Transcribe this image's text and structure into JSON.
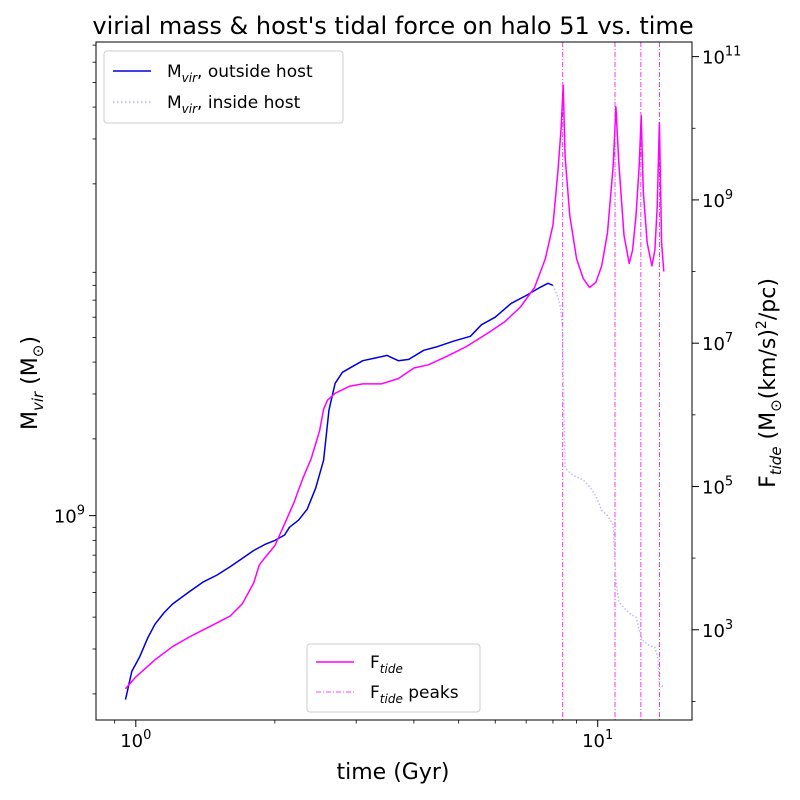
{
  "chart_data": {
    "type": "line",
    "title": "virial mass & host's tidal force on halo 51 vs. time",
    "xlabel": "time (Gyr)",
    "ylabel_left": "M_vir (M_⊙)",
    "ylabel_right": "F_tide (M_⊙(km/s)²/pc)",
    "xscale": "log",
    "yscale_left": "log",
    "yscale_right": "log",
    "xlim": [
      0.82,
      16.0
    ],
    "ylim_left": [
      158000000.0,
      72000000000.0
    ],
    "ylim_right": [
      55,
      160000000000.0
    ],
    "x_ticks": [
      {
        "value": 1,
        "base": "10",
        "exp": "0"
      },
      {
        "value": 10,
        "base": "10",
        "exp": "1"
      }
    ],
    "left_ticks": [
      {
        "value": 1000000000.0,
        "base": "10",
        "exp": "9"
      }
    ],
    "right_ticks": [
      {
        "value": 1000.0,
        "base": "10",
        "exp": "3"
      },
      {
        "value": 100000.0,
        "base": "10",
        "exp": "5"
      },
      {
        "value": 10000000.0,
        "base": "10",
        "exp": "7"
      },
      {
        "value": 1000000000.0,
        "base": "10",
        "exp": "9"
      },
      {
        "value": 100000000000.0,
        "base": "10",
        "exp": "11"
      }
    ],
    "colors": {
      "mvir_outside": "#0000dd",
      "mvir_inside": "#b8b8f5",
      "ftide": "#ff00ff",
      "peaks": "#ff00ff"
    },
    "series": [
      {
        "name": "M_vir, outside host",
        "axis": "left",
        "style": "solid",
        "points": [
          [
            0.95,
            190000000.0
          ],
          [
            0.98,
            245000000.0
          ],
          [
            1.02,
            280000000.0
          ],
          [
            1.06,
            330000000.0
          ],
          [
            1.1,
            375000000.0
          ],
          [
            1.15,
            415000000.0
          ],
          [
            1.2,
            450000000.0
          ],
          [
            1.3,
            500000000.0
          ],
          [
            1.4,
            550000000.0
          ],
          [
            1.5,
            585000000.0
          ],
          [
            1.6,
            630000000.0
          ],
          [
            1.7,
            680000000.0
          ],
          [
            1.8,
            730000000.0
          ],
          [
            1.9,
            770000000.0
          ],
          [
            2.0,
            800000000.0
          ],
          [
            2.1,
            840000000.0
          ],
          [
            2.15,
            900000000.0
          ],
          [
            2.25,
            960000000.0
          ],
          [
            2.35,
            1060000000.0
          ],
          [
            2.45,
            1280000000.0
          ],
          [
            2.55,
            1650000000.0
          ],
          [
            2.62,
            2600000000.0
          ],
          [
            2.7,
            3300000000.0
          ],
          [
            2.8,
            3650000000.0
          ],
          [
            2.95,
            3850000000.0
          ],
          [
            3.1,
            4050000000.0
          ],
          [
            3.3,
            4150000000.0
          ],
          [
            3.5,
            4250000000.0
          ],
          [
            3.7,
            4050000000.0
          ],
          [
            3.9,
            4100000000.0
          ],
          [
            4.2,
            4450000000.0
          ],
          [
            4.5,
            4600000000.0
          ],
          [
            4.9,
            4850000000.0
          ],
          [
            5.3,
            5050000000.0
          ],
          [
            5.6,
            5600000000.0
          ],
          [
            6.0,
            6000000000.0
          ],
          [
            6.5,
            6800000000.0
          ],
          [
            7.0,
            7300000000.0
          ],
          [
            7.5,
            7850000000.0
          ],
          [
            7.8,
            8150000000.0
          ],
          [
            8.0,
            8000000000.0
          ]
        ]
      },
      {
        "name": "M_vir, inside host",
        "axis": "left",
        "style": "dotted",
        "points": [
          [
            8.0,
            8000000000.0
          ],
          [
            8.1,
            7600000000.0
          ],
          [
            8.2,
            7200000000.0
          ],
          [
            8.3,
            6600000000.0
          ],
          [
            8.38,
            5500000000.0
          ],
          [
            8.45,
            2500000000.0
          ],
          [
            8.5,
            1550000000.0
          ],
          [
            8.6,
            1500000000.0
          ],
          [
            8.8,
            1450000000.0
          ],
          [
            9.0,
            1420000000.0
          ],
          [
            9.3,
            1380000000.0
          ],
          [
            9.6,
            1300000000.0
          ],
          [
            9.9,
            1200000000.0
          ],
          [
            10.2,
            1050000000.0
          ],
          [
            10.5,
            1000000000.0
          ],
          [
            10.8,
            920000000.0
          ],
          [
            10.95,
            560000000.0
          ],
          [
            11.1,
            460000000.0
          ],
          [
            11.4,
            435000000.0
          ],
          [
            11.8,
            410000000.0
          ],
          [
            12.1,
            400000000.0
          ],
          [
            12.3,
            355000000.0
          ],
          [
            12.5,
            325000000.0
          ],
          [
            12.9,
            310000000.0
          ],
          [
            13.3,
            305000000.0
          ],
          [
            13.5,
            275000000.0
          ],
          [
            13.6,
            215000000.0
          ],
          [
            13.9,
            215000000.0
          ]
        ]
      },
      {
        "name": "F_tide",
        "axis": "right",
        "style": "solid",
        "points": [
          [
            0.95,
            150
          ],
          [
            1.0,
            220
          ],
          [
            1.1,
            380
          ],
          [
            1.2,
            580
          ],
          [
            1.3,
            780
          ],
          [
            1.4,
            1000
          ],
          [
            1.5,
            1250
          ],
          [
            1.6,
            1550
          ],
          [
            1.7,
            2300
          ],
          [
            1.8,
            4500
          ],
          [
            1.85,
            8000
          ],
          [
            1.9,
            10000.0
          ],
          [
            2.0,
            15000.0
          ],
          [
            2.1,
            30000.0
          ],
          [
            2.2,
            60000.0
          ],
          [
            2.3,
            130000.0
          ],
          [
            2.4,
            250000.0
          ],
          [
            2.5,
            600000.0
          ],
          [
            2.55,
            1200000.0
          ],
          [
            2.6,
            1600000.0
          ],
          [
            2.7,
            2000000.0
          ],
          [
            2.9,
            2500000.0
          ],
          [
            3.1,
            2700000.0
          ],
          [
            3.4,
            2700000.0
          ],
          [
            3.7,
            3200000.0
          ],
          [
            4.0,
            4500000.0
          ],
          [
            4.3,
            5000000.0
          ],
          [
            4.7,
            6500000.0
          ],
          [
            5.2,
            9000000.0
          ],
          [
            5.8,
            14000000.0
          ],
          [
            6.3,
            20000000.0
          ],
          [
            6.8,
            32000000.0
          ],
          [
            7.3,
            60000000.0
          ],
          [
            7.7,
            150000000.0
          ],
          [
            8.0,
            450000000.0
          ],
          [
            8.2,
            2500000000.0
          ],
          [
            8.33,
            10000000000.0
          ],
          [
            8.42,
            40000000000.0
          ],
          [
            8.5,
            4000000000.0
          ],
          [
            8.7,
            600000000.0
          ],
          [
            9.0,
            150000000.0
          ],
          [
            9.3,
            80000000.0
          ],
          [
            9.6,
            60000000.0
          ],
          [
            9.9,
            70000000.0
          ],
          [
            10.2,
            120000000.0
          ],
          [
            10.5,
            350000000.0
          ],
          [
            10.8,
            3000000000.0
          ],
          [
            10.95,
            20000000000.0
          ],
          [
            11.1,
            3500000000.0
          ],
          [
            11.4,
            320000000.0
          ],
          [
            11.7,
            130000000.0
          ],
          [
            11.9,
            200000000.0
          ],
          [
            12.1,
            600000000.0
          ],
          [
            12.3,
            3000000000.0
          ],
          [
            12.42,
            15000000000.0
          ],
          [
            12.55,
            1300000000.0
          ],
          [
            12.8,
            250000000.0
          ],
          [
            13.1,
            120000000.0
          ],
          [
            13.3,
            200000000.0
          ],
          [
            13.45,
            800000000.0
          ],
          [
            13.6,
            12000000000.0
          ],
          [
            13.75,
            250000000.0
          ],
          [
            13.9,
            100000000.0
          ]
        ]
      }
    ],
    "peaks": {
      "name": "F_tide peaks",
      "x": [
        8.4,
        10.9,
        12.4,
        13.6
      ]
    },
    "legend_upper": {
      "placement": "top-left",
      "entries": [
        {
          "base": "M",
          "sub": "vir",
          "rest": ", outside host"
        },
        {
          "base": "M",
          "sub": "vir",
          "rest": ", inside host"
        }
      ]
    },
    "legend_lower": {
      "placement": "lower-center",
      "entries": [
        {
          "base": "F",
          "sub": "tide",
          "rest": ""
        },
        {
          "base": "F",
          "sub": "tide",
          "rest": " peaks"
        }
      ]
    },
    "axis_titles": {
      "x": "time (Gyr)",
      "left_base": "M",
      "left_sub": "vir",
      "left_rest_open": " (M",
      "left_sun": "⊙",
      "left_rest_close": ")",
      "right_base": "F",
      "right_sub": "tide",
      "right_rest_open": " (M",
      "right_sun": "⊙",
      "right_mid": "(km/s)",
      "right_sup": "2",
      "right_tail": "/pc)"
    },
    "grid": false
  }
}
